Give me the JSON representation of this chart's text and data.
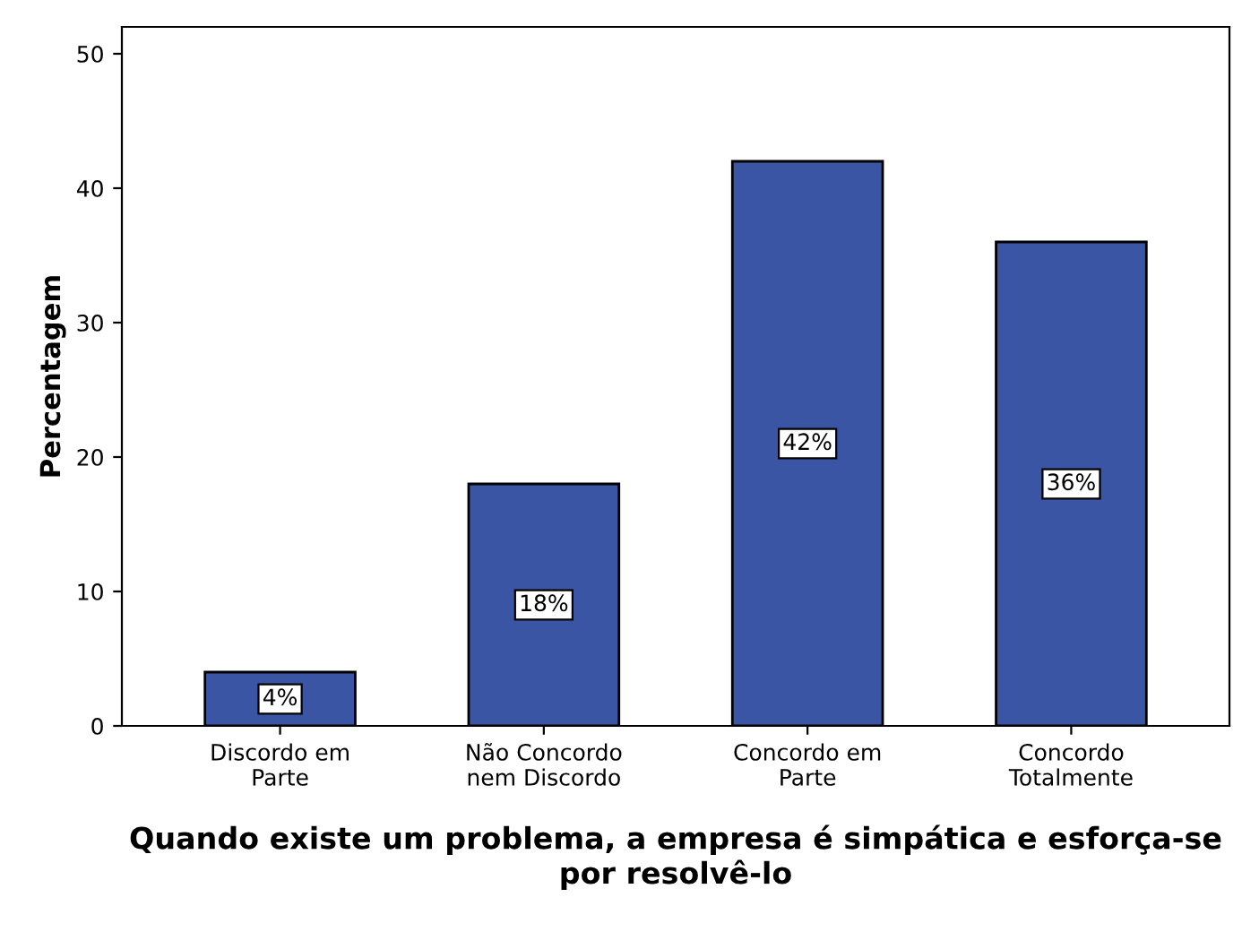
{
  "chart_data": {
    "type": "bar",
    "xlabel": "Quando existe um problema, a empresa é simpática e esforça-se por resolvê-lo",
    "ylabel": "Percentagem",
    "categories": [
      "Discordo em\nParte",
      "Não Concordo\nnem Discordo",
      "Concordo em\nParte",
      "Concordo\nTotalmente"
    ],
    "values": [
      4,
      18,
      42,
      36
    ],
    "value_labels": [
      "4%",
      "18%",
      "42%",
      "36%"
    ],
    "color": "#3a55a4",
    "ylim": [
      0,
      52
    ],
    "yticks": [
      0,
      10,
      20,
      30,
      40,
      50
    ],
    "grid": false,
    "legend": false
  }
}
